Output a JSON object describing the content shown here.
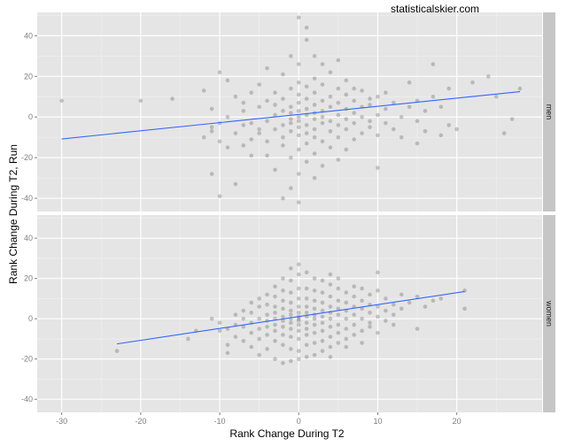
{
  "watermark": "statisticalskier.com",
  "colors": {
    "panel_bg": "#e5e5e5",
    "grid_major": "#ffffff",
    "grid_minor": "#f0f0f0",
    "strip_bg": "#c6c6c6",
    "point": "#333333",
    "fit_line": "#3366ff",
    "tick": "#7f7f7f"
  },
  "chart_data": {
    "type": "scatter",
    "xlabel": "Rank Change During T2",
    "ylabel": "Rank Change During T2, Run",
    "xlim": [
      -33.1,
      30.8
    ],
    "ylim": [
      -46.5,
      51.5
    ],
    "x_ticks": [
      -30,
      -20,
      -10,
      0,
      10,
      20
    ],
    "y_ticks": [
      -40,
      -20,
      0,
      20,
      40
    ],
    "grid": true,
    "point_alpha": 0.25,
    "facets": [
      {
        "label": "men",
        "fit_line": {
          "x": [
            -30,
            28
          ],
          "y": [
            -10.8,
            12.5
          ]
        },
        "points": [
          [
            -30,
            8
          ],
          [
            -20,
            8
          ],
          [
            -16,
            9
          ],
          [
            -12,
            -10
          ],
          [
            -12,
            13
          ],
          [
            -11,
            -5
          ],
          [
            -11,
            -7
          ],
          [
            -11,
            4
          ],
          [
            -11,
            -28
          ],
          [
            -10,
            -39
          ],
          [
            -10,
            -12
          ],
          [
            -10,
            -3
          ],
          [
            -10,
            22
          ],
          [
            -9,
            18
          ],
          [
            -9,
            0
          ],
          [
            -9,
            -15
          ],
          [
            -8,
            -33
          ],
          [
            -8,
            -8
          ],
          [
            -8,
            10
          ],
          [
            -7,
            -14
          ],
          [
            -7,
            3
          ],
          [
            -7,
            -4
          ],
          [
            -7,
            7
          ],
          [
            -6,
            -3
          ],
          [
            -6,
            -11
          ],
          [
            -6,
            12
          ],
          [
            -6,
            -19
          ],
          [
            -5,
            -6
          ],
          [
            -5,
            5
          ],
          [
            -5,
            -8
          ],
          [
            -5,
            16
          ],
          [
            -4,
            -2
          ],
          [
            -4,
            -12
          ],
          [
            -4,
            24
          ],
          [
            -4,
            -19
          ],
          [
            -4,
            8
          ],
          [
            -3,
            -6
          ],
          [
            -3,
            1
          ],
          [
            -3,
            6
          ],
          [
            -3,
            -26
          ],
          [
            -3,
            12
          ],
          [
            -2,
            -10
          ],
          [
            -2,
            -4
          ],
          [
            -2,
            3
          ],
          [
            -2,
            -14
          ],
          [
            -2,
            21
          ],
          [
            -2,
            -40
          ],
          [
            -2,
            9
          ],
          [
            -1,
            -3
          ],
          [
            -1,
            -1
          ],
          [
            -1,
            5
          ],
          [
            -1,
            -7
          ],
          [
            -1,
            -20
          ],
          [
            -1,
            14
          ],
          [
            -1,
            30
          ],
          [
            -1,
            -35
          ],
          [
            -1,
            2
          ],
          [
            0,
            0
          ],
          [
            0,
            -2
          ],
          [
            0,
            3
          ],
          [
            0,
            -5
          ],
          [
            0,
            7
          ],
          [
            0,
            -9
          ],
          [
            0,
            11
          ],
          [
            0,
            -16
          ],
          [
            0,
            17
          ],
          [
            0,
            -28
          ],
          [
            0,
            26
          ],
          [
            0,
            49
          ],
          [
            0,
            -42
          ],
          [
            1,
            1
          ],
          [
            1,
            -4
          ],
          [
            1,
            4
          ],
          [
            1,
            -8
          ],
          [
            1,
            9
          ],
          [
            1,
            -13
          ],
          [
            1,
            15
          ],
          [
            1,
            -22
          ],
          [
            1,
            38
          ],
          [
            1,
            44
          ],
          [
            2,
            -1
          ],
          [
            2,
            2
          ],
          [
            2,
            -6
          ],
          [
            2,
            6
          ],
          [
            2,
            -10
          ],
          [
            2,
            12
          ],
          [
            2,
            -18
          ],
          [
            2,
            19
          ],
          [
            2,
            -30
          ],
          [
            2,
            30
          ],
          [
            3,
            0
          ],
          [
            3,
            -3
          ],
          [
            3,
            3
          ],
          [
            3,
            8
          ],
          [
            3,
            -12
          ],
          [
            3,
            16
          ],
          [
            3,
            -24
          ],
          [
            3,
            26
          ],
          [
            4,
            -2
          ],
          [
            4,
            5
          ],
          [
            4,
            -7
          ],
          [
            4,
            10
          ],
          [
            4,
            -15
          ],
          [
            4,
            22
          ],
          [
            5,
            1
          ],
          [
            5,
            -4
          ],
          [
            5,
            7
          ],
          [
            5,
            -10
          ],
          [
            5,
            14
          ],
          [
            5,
            -21
          ],
          [
            5,
            28
          ],
          [
            6,
            -1
          ],
          [
            6,
            4
          ],
          [
            6,
            -6
          ],
          [
            6,
            11
          ],
          [
            6,
            18
          ],
          [
            6,
            -16
          ],
          [
            7,
            2
          ],
          [
            7,
            -3
          ],
          [
            7,
            8
          ],
          [
            7,
            -11
          ],
          [
            7,
            14
          ],
          [
            8,
            0
          ],
          [
            8,
            5
          ],
          [
            8,
            -8
          ],
          [
            8,
            13
          ],
          [
            9,
            -2
          ],
          [
            9,
            6
          ],
          [
            9,
            -5
          ],
          [
            9,
            9
          ],
          [
            10,
            1
          ],
          [
            10,
            -9
          ],
          [
            10,
            -25
          ],
          [
            10,
            10
          ],
          [
            11,
            -3
          ],
          [
            11,
            4
          ],
          [
            11,
            12
          ],
          [
            12,
            -6
          ],
          [
            12,
            7
          ],
          [
            13,
            0
          ],
          [
            13,
            -10
          ],
          [
            14,
            5
          ],
          [
            14,
            17
          ],
          [
            15,
            -2
          ],
          [
            15,
            8
          ],
          [
            15,
            -13
          ],
          [
            16,
            3
          ],
          [
            16,
            -7
          ],
          [
            17,
            10
          ],
          [
            17,
            26
          ],
          [
            18,
            -9
          ],
          [
            18,
            5
          ],
          [
            19,
            -4
          ],
          [
            19,
            14
          ],
          [
            20,
            -6
          ],
          [
            22,
            17
          ],
          [
            24,
            20
          ],
          [
            25,
            10
          ],
          [
            26,
            -8
          ],
          [
            27,
            -1
          ],
          [
            28,
            14
          ]
        ]
      },
      {
        "label": "women",
        "fit_line": {
          "x": [
            -23,
            21
          ],
          "y": [
            -12.5,
            13.5
          ]
        },
        "points": [
          [
            -23,
            -16
          ],
          [
            -14,
            -10
          ],
          [
            -13,
            -6
          ],
          [
            -11,
            0
          ],
          [
            -10,
            -2
          ],
          [
            -10,
            -6
          ],
          [
            -9,
            -13
          ],
          [
            -9,
            -17
          ],
          [
            -9,
            -5
          ],
          [
            -8,
            -3
          ],
          [
            -8,
            2
          ],
          [
            -8,
            -9
          ],
          [
            -7,
            0
          ],
          [
            -7,
            -4
          ],
          [
            -7,
            4
          ],
          [
            -7,
            -11
          ],
          [
            -6,
            -2
          ],
          [
            -6,
            3
          ],
          [
            -6,
            -7
          ],
          [
            -6,
            8
          ],
          [
            -6,
            -14
          ],
          [
            -5,
            0
          ],
          [
            -5,
            -5
          ],
          [
            -5,
            6
          ],
          [
            -5,
            -10
          ],
          [
            -5,
            10
          ],
          [
            -5,
            -18
          ],
          [
            -4,
            -1
          ],
          [
            -4,
            2
          ],
          [
            -4,
            -4
          ],
          [
            -4,
            7
          ],
          [
            -4,
            -8
          ],
          [
            -4,
            12
          ],
          [
            -4,
            -15
          ],
          [
            -3,
            0
          ],
          [
            -3,
            -3
          ],
          [
            -3,
            3
          ],
          [
            -3,
            -6
          ],
          [
            -3,
            6
          ],
          [
            -3,
            -11
          ],
          [
            -3,
            11
          ],
          [
            -3,
            -20
          ],
          [
            -3,
            16
          ],
          [
            -2,
            -1
          ],
          [
            -2,
            1
          ],
          [
            -2,
            -4
          ],
          [
            -2,
            5
          ],
          [
            -2,
            -8
          ],
          [
            -2,
            9
          ],
          [
            -2,
            -13
          ],
          [
            -2,
            14
          ],
          [
            -2,
            -22
          ],
          [
            -2,
            20
          ],
          [
            -1,
            0
          ],
          [
            -1,
            -2
          ],
          [
            -1,
            2
          ],
          [
            -1,
            -5
          ],
          [
            -1,
            4
          ],
          [
            -1,
            -9
          ],
          [
            -1,
            8
          ],
          [
            -1,
            -15
          ],
          [
            -1,
            13
          ],
          [
            -1,
            -21
          ],
          [
            -1,
            19
          ],
          [
            -1,
            25
          ],
          [
            0,
            0
          ],
          [
            0,
            -1
          ],
          [
            0,
            1
          ],
          [
            0,
            -3
          ],
          [
            0,
            3
          ],
          [
            0,
            -6
          ],
          [
            0,
            6
          ],
          [
            0,
            -10
          ],
          [
            0,
            10
          ],
          [
            0,
            -16
          ],
          [
            0,
            15
          ],
          [
            0,
            -20
          ],
          [
            0,
            22
          ],
          [
            0,
            27
          ],
          [
            1,
            1
          ],
          [
            1,
            -2
          ],
          [
            1,
            3
          ],
          [
            1,
            -5
          ],
          [
            1,
            6
          ],
          [
            1,
            -8
          ],
          [
            1,
            10
          ],
          [
            1,
            -13
          ],
          [
            1,
            15
          ],
          [
            1,
            -19
          ],
          [
            1,
            23
          ],
          [
            2,
            0
          ],
          [
            2,
            2
          ],
          [
            2,
            -3
          ],
          [
            2,
            5
          ],
          [
            2,
            -7
          ],
          [
            2,
            9
          ],
          [
            2,
            -12
          ],
          [
            2,
            14
          ],
          [
            2,
            -18
          ],
          [
            2,
            20
          ],
          [
            3,
            1
          ],
          [
            3,
            -2
          ],
          [
            3,
            4
          ],
          [
            3,
            -6
          ],
          [
            3,
            8
          ],
          [
            3,
            -11
          ],
          [
            3,
            13
          ],
          [
            3,
            -16
          ],
          [
            3,
            19
          ],
          [
            4,
            0
          ],
          [
            4,
            3
          ],
          [
            4,
            -4
          ],
          [
            4,
            6
          ],
          [
            4,
            -9
          ],
          [
            4,
            11
          ],
          [
            4,
            -14
          ],
          [
            4,
            17
          ],
          [
            4,
            -19
          ],
          [
            4,
            22
          ],
          [
            5,
            2
          ],
          [
            5,
            -3
          ],
          [
            5,
            5
          ],
          [
            5,
            -7
          ],
          [
            5,
            9
          ],
          [
            5,
            -12
          ],
          [
            5,
            15
          ],
          [
            5,
            20
          ],
          [
            6,
            0
          ],
          [
            6,
            4
          ],
          [
            6,
            -5
          ],
          [
            6,
            8
          ],
          [
            6,
            -10
          ],
          [
            6,
            13
          ],
          [
            6,
            -14
          ],
          [
            7,
            2
          ],
          [
            7,
            -3
          ],
          [
            7,
            6
          ],
          [
            7,
            -8
          ],
          [
            7,
            11
          ],
          [
            7,
            16
          ],
          [
            8,
            0
          ],
          [
            8,
            5
          ],
          [
            8,
            -6
          ],
          [
            8,
            9
          ],
          [
            8,
            -12
          ],
          [
            8,
            15
          ],
          [
            9,
            3
          ],
          [
            9,
            -4
          ],
          [
            9,
            7
          ],
          [
            9,
            12
          ],
          [
            9,
            -2
          ],
          [
            10,
            1
          ],
          [
            10,
            -7
          ],
          [
            10,
            6
          ],
          [
            10,
            14
          ],
          [
            10,
            23
          ],
          [
            11,
            4
          ],
          [
            11,
            -1
          ],
          [
            11,
            10
          ],
          [
            12,
            2
          ],
          [
            12,
            7
          ],
          [
            12,
            -3
          ],
          [
            13,
            5
          ],
          [
            13,
            12
          ],
          [
            14,
            8
          ],
          [
            15,
            11
          ],
          [
            15,
            -5
          ],
          [
            16,
            6
          ],
          [
            17,
            9
          ],
          [
            18,
            10
          ],
          [
            21,
            14
          ],
          [
            21,
            5
          ]
        ]
      }
    ]
  }
}
